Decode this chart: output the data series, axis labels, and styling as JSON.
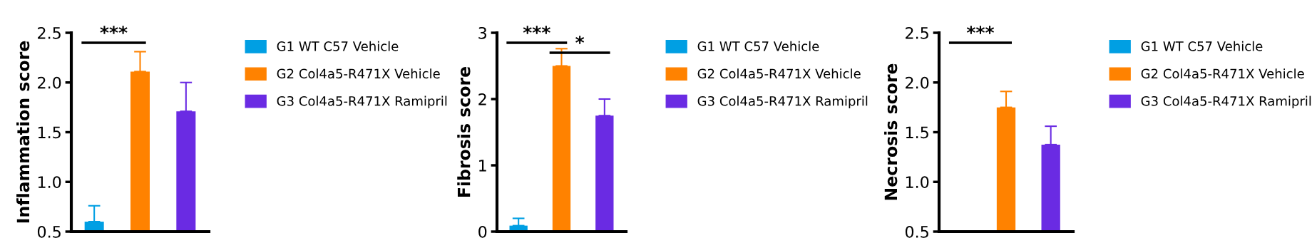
{
  "chart_data": [
    {
      "type": "bar",
      "ylabel": "Inflammation score",
      "categories": [
        null,
        null,
        null
      ],
      "ylim": [
        0.5,
        2.5
      ],
      "yticks": [
        {
          "value": 0.5,
          "label": "0.5"
        },
        {
          "value": 1.0,
          "label": "1.0"
        },
        {
          "value": 1.5,
          "label": "1.5"
        },
        {
          "value": 2.0,
          "label": "2.0"
        },
        {
          "value": 2.5,
          "label": "2.5"
        }
      ],
      "legend": "right",
      "grid": false,
      "annotations": [
        "***"
      ],
      "series": [
        {
          "name": "G1 WT C57 Vehicle",
          "color": "#009fe3",
          "values": [
            0.6,
            null,
            null
          ],
          "errors": [
            [
              0.6,
              0.76
            ],
            null,
            null
          ]
        },
        {
          "name": "G2 Col4a5-R471X Vehicle",
          "color": "#ff8200",
          "values": [
            null,
            2.11,
            null
          ],
          "errors": [
            null,
            [
              2.11,
              2.31
            ],
            null
          ]
        },
        {
          "name": "G3 Col4a5-R471X Ramipril",
          "color": "#6a2be3",
          "values": [
            null,
            null,
            1.71
          ],
          "errors": [
            null,
            null,
            [
              1.71,
              2.0
            ]
          ]
        }
      ]
    },
    {
      "type": "bar",
      "ylabel": "Fibrosis score",
      "categories": [
        null,
        null,
        null
      ],
      "ylim": [
        0,
        3
      ],
      "yticks": [
        0,
        1,
        2,
        3
      ],
      "legend": "right",
      "grid": false,
      "annotations": [
        "***",
        "*"
      ],
      "series": [
        {
          "name": "G1 WT C57 Vehicle",
          "color": "#009fe3",
          "values": [
            0.09,
            null,
            null
          ],
          "errors": [
            [
              0.09,
              0.2
            ],
            null,
            null
          ]
        },
        {
          "name": "G2 Col4a5-R471X Vehicle",
          "color": "#ff8200",
          "values": [
            null,
            2.5,
            null
          ],
          "errors": [
            null,
            [
              2.5,
              2.76
            ],
            null
          ]
        },
        {
          "name": "G3 Col4a5-R471X Ramipril",
          "color": "#6a2be3",
          "values": [
            null,
            null,
            1.75
          ],
          "errors": [
            null,
            null,
            [
              1.75,
              2.0
            ]
          ]
        }
      ]
    },
    {
      "type": "bar",
      "ylabel": "Necrosis score",
      "categories": [
        null,
        null,
        null
      ],
      "ylim": [
        0.5,
        2.5
      ],
      "yticks": [
        {
          "value": 0.5,
          "label": "0.5"
        },
        {
          "value": 1.0,
          "label": "1.0"
        },
        {
          "value": 1.5,
          "label": "1.5"
        },
        {
          "value": 2.0,
          "label": "2.0"
        },
        {
          "value": 2.5,
          "label": "2.5"
        }
      ],
      "legend": "right",
      "grid": false,
      "annotations": [
        "***"
      ],
      "series": [
        {
          "name": "G1 WT C57 Vehicle",
          "color": "#009fe3",
          "values": [
            0.5,
            null,
            null
          ]
        },
        {
          "name": "G2 Col4a5-R471X Vehicle",
          "color": "#ff8200",
          "values": [
            null,
            1.75,
            null
          ],
          "errors": [
            null,
            [
              1.75,
              1.91
            ],
            null
          ]
        },
        {
          "name": "G3 Col4a5-R471X Ramipril",
          "color": "#6a2be3",
          "values": [
            null,
            null,
            1.375
          ],
          "errors": [
            null,
            null,
            [
              1.375,
              1.56
            ]
          ]
        }
      ]
    }
  ]
}
